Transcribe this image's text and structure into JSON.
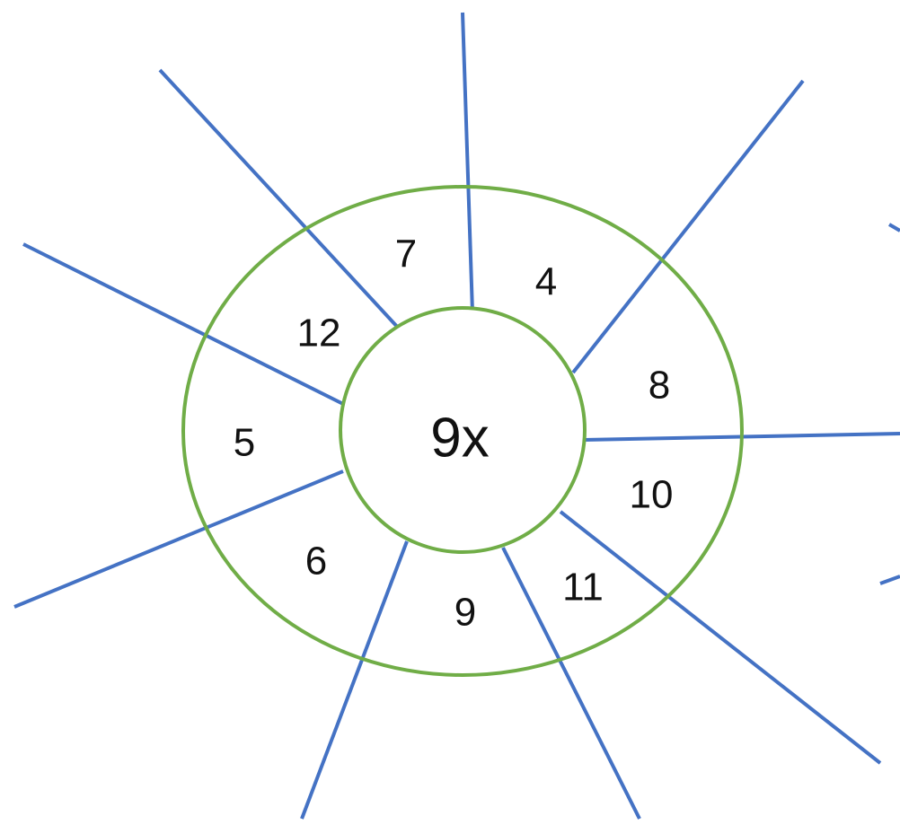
{
  "diagram": {
    "center_label": "9x",
    "segment_numbers": [
      "7",
      "4",
      "8",
      "10",
      "11",
      "9",
      "6",
      "5",
      "12"
    ],
    "colors": {
      "rings": "#70ad47",
      "spokes": "#4472c4",
      "text": "#111111",
      "background": "#ffffff"
    }
  }
}
